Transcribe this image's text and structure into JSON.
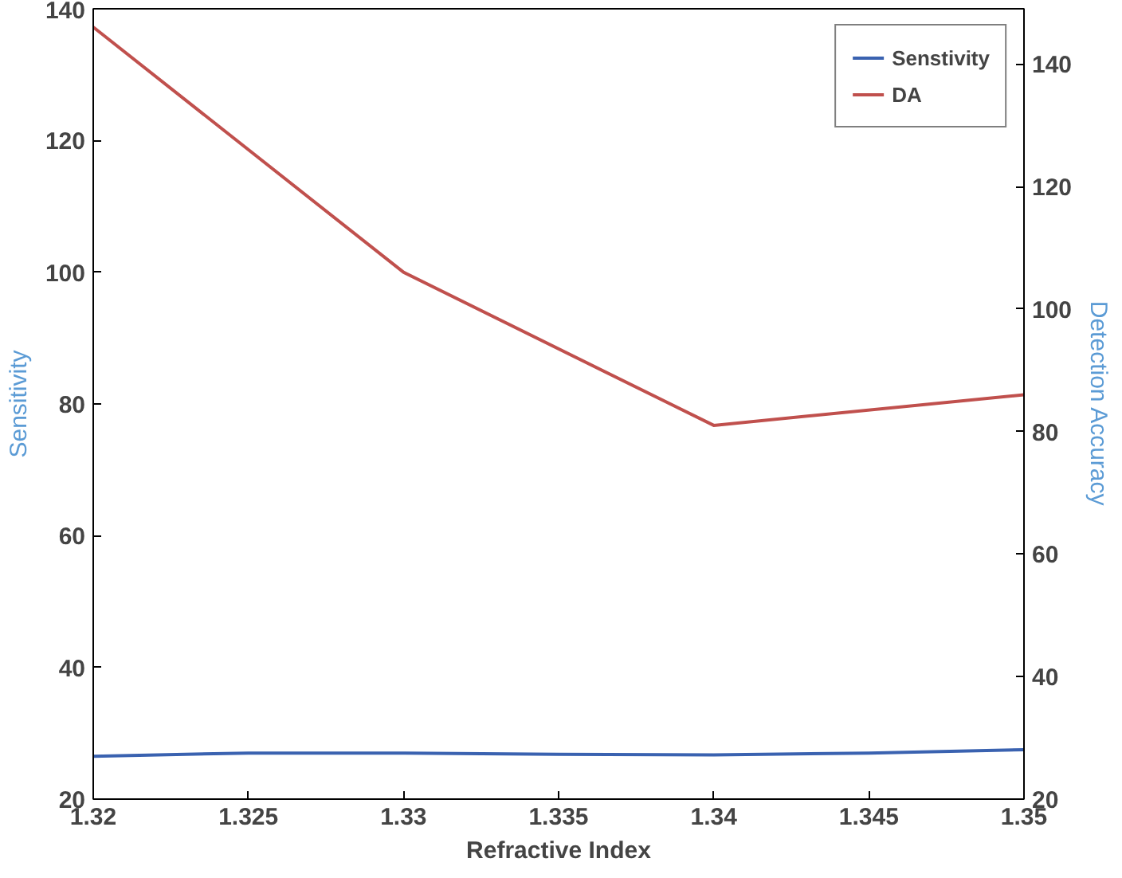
{
  "chart_data": {
    "type": "line",
    "xlabel": "Refractive Index",
    "ylabel": "Sensitivity",
    "y2label": "Detection Accuracy",
    "x": [
      1.32,
      1.325,
      1.33,
      1.335,
      1.34,
      1.345,
      1.35
    ],
    "series": [
      {
        "name": "Senstivity",
        "color": "#3a62b0",
        "values": [
          26.5,
          27,
          27,
          26.8,
          26.7,
          27,
          27.5
        ]
      },
      {
        "name": "DA",
        "color": "#c0504d",
        "axis": "y2",
        "x": [
          1.32,
          1.33,
          1.34,
          1.35
        ],
        "values": [
          146,
          106,
          81,
          86
        ]
      }
    ],
    "xlim": [
      1.32,
      1.35
    ],
    "xticks": [
      1.32,
      1.325,
      1.33,
      1.335,
      1.34,
      1.345,
      1.35
    ],
    "ylim": [
      20,
      140
    ],
    "yticks": [
      20,
      40,
      60,
      80,
      100,
      120,
      140
    ],
    "y2lim": [
      20,
      149
    ],
    "y2ticks": [
      20,
      40,
      60,
      80,
      100,
      120,
      140
    ],
    "legend": "top right",
    "grid": false
  }
}
